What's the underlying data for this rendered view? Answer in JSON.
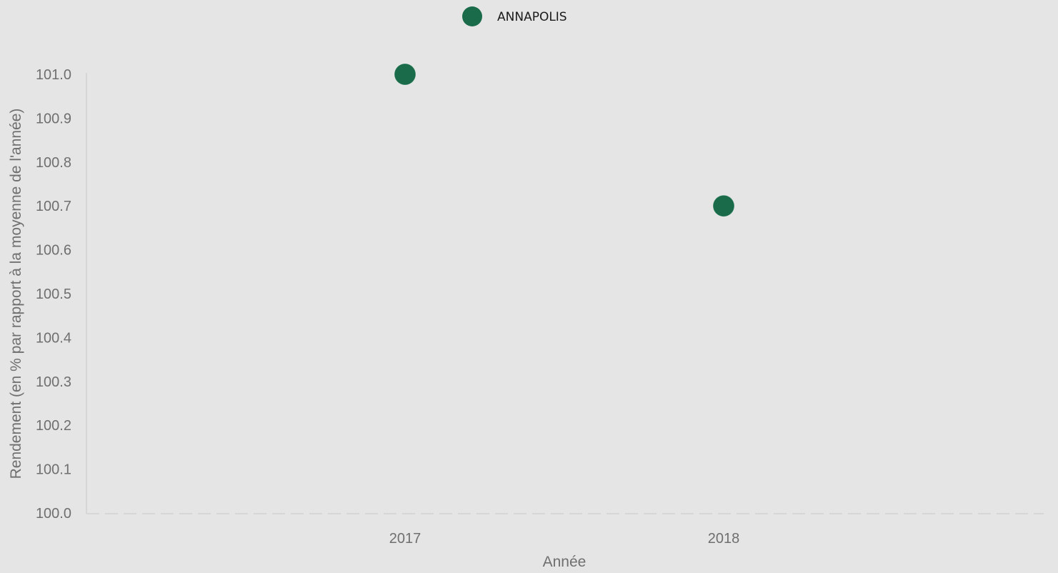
{
  "chart_data": {
    "type": "scatter",
    "categories": [
      "2017",
      "2018"
    ],
    "series": [
      {
        "name": "ANNAPOLIS",
        "color": "#1a6b4a",
        "values": [
          101.0,
          100.7
        ]
      }
    ],
    "xlabel": "Année",
    "ylabel": "Rendement (en % par rapport à la moyenne de l'année)",
    "ylim": [
      100.0,
      101.0
    ],
    "yticks": [
      "100.0",
      "100.1",
      "100.2",
      "100.3",
      "100.4",
      "100.5",
      "100.6",
      "100.7",
      "100.8",
      "100.9",
      "101.0"
    ],
    "grid": false,
    "legend": "top-center",
    "background": "#e5e5e5"
  }
}
